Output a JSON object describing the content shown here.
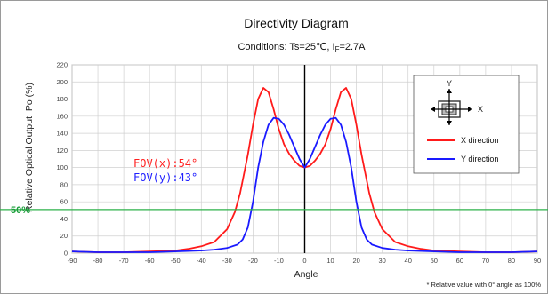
{
  "chart_data": {
    "type": "line",
    "title": "Directivity Diagram",
    "subtitle_parts": {
      "prefix": "Conditions: Ts=25℃, I",
      "subscript": "F",
      "suffix": "=2.7A"
    },
    "xlabel": "Angle",
    "ylabel": "Relative Optical Output: Po (%)",
    "xlim": [
      -90,
      90
    ],
    "ylim": [
      0,
      220
    ],
    "x_ticks": [
      -90,
      -80,
      -70,
      -60,
      -50,
      -40,
      -30,
      -20,
      -10,
      0,
      10,
      20,
      30,
      40,
      50,
      60,
      70,
      80,
      90
    ],
    "y_ticks": [
      0,
      20,
      40,
      60,
      80,
      100,
      120,
      140,
      160,
      180,
      200,
      220
    ],
    "grid": true,
    "reference_line": {
      "y": 51,
      "label": "50%",
      "color": "#2db24a"
    },
    "annotations": [
      {
        "text": "FOV(x):54°",
        "color": "#ff2020"
      },
      {
        "text": "FOV(y):43°",
        "color": "#2020ff"
      }
    ],
    "note": "* Relative value with 0° angle as 100%",
    "legend": {
      "position": "top-right",
      "axis_y_label": "Y",
      "axis_x_label": "X"
    },
    "series": [
      {
        "name": "X direction",
        "color": "#ff1a1a",
        "x": [
          -90,
          -80,
          -70,
          -60,
          -50,
          -45,
          -40,
          -35,
          -30,
          -27,
          -25,
          -22,
          -20,
          -18,
          -16,
          -14,
          -12,
          -10,
          -8,
          -6,
          -4,
          -2,
          0,
          2,
          4,
          6,
          8,
          10,
          12,
          14,
          16,
          18,
          20,
          22,
          25,
          27,
          30,
          35,
          40,
          45,
          50,
          60,
          70,
          80,
          90
        ],
        "y": [
          2,
          1,
          1,
          2,
          3,
          5,
          8,
          13,
          28,
          48,
          70,
          115,
          150,
          180,
          193,
          188,
          168,
          145,
          127,
          116,
          108,
          102,
          100,
          102,
          108,
          116,
          127,
          145,
          168,
          188,
          193,
          180,
          150,
          115,
          70,
          48,
          28,
          13,
          8,
          5,
          3,
          2,
          1,
          1,
          2
        ]
      },
      {
        "name": "Y direction",
        "color": "#1a1aff",
        "x": [
          -90,
          -80,
          -70,
          -60,
          -50,
          -40,
          -35,
          -30,
          -26,
          -24,
          -22,
          -20,
          -18,
          -16,
          -14,
          -12,
          -10,
          -8,
          -6,
          -4,
          -2,
          0,
          2,
          4,
          6,
          8,
          10,
          12,
          14,
          16,
          18,
          20,
          22,
          24,
          26,
          30,
          35,
          40,
          50,
          60,
          70,
          80,
          90
        ],
        "y": [
          2,
          1,
          1,
          1,
          2,
          3,
          4,
          6,
          10,
          16,
          30,
          60,
          100,
          130,
          150,
          158,
          157,
          150,
          138,
          124,
          110,
          100,
          110,
          124,
          138,
          150,
          157,
          158,
          150,
          130,
          100,
          60,
          30,
          16,
          10,
          6,
          4,
          3,
          2,
          1,
          1,
          1,
          2
        ]
      }
    ]
  }
}
